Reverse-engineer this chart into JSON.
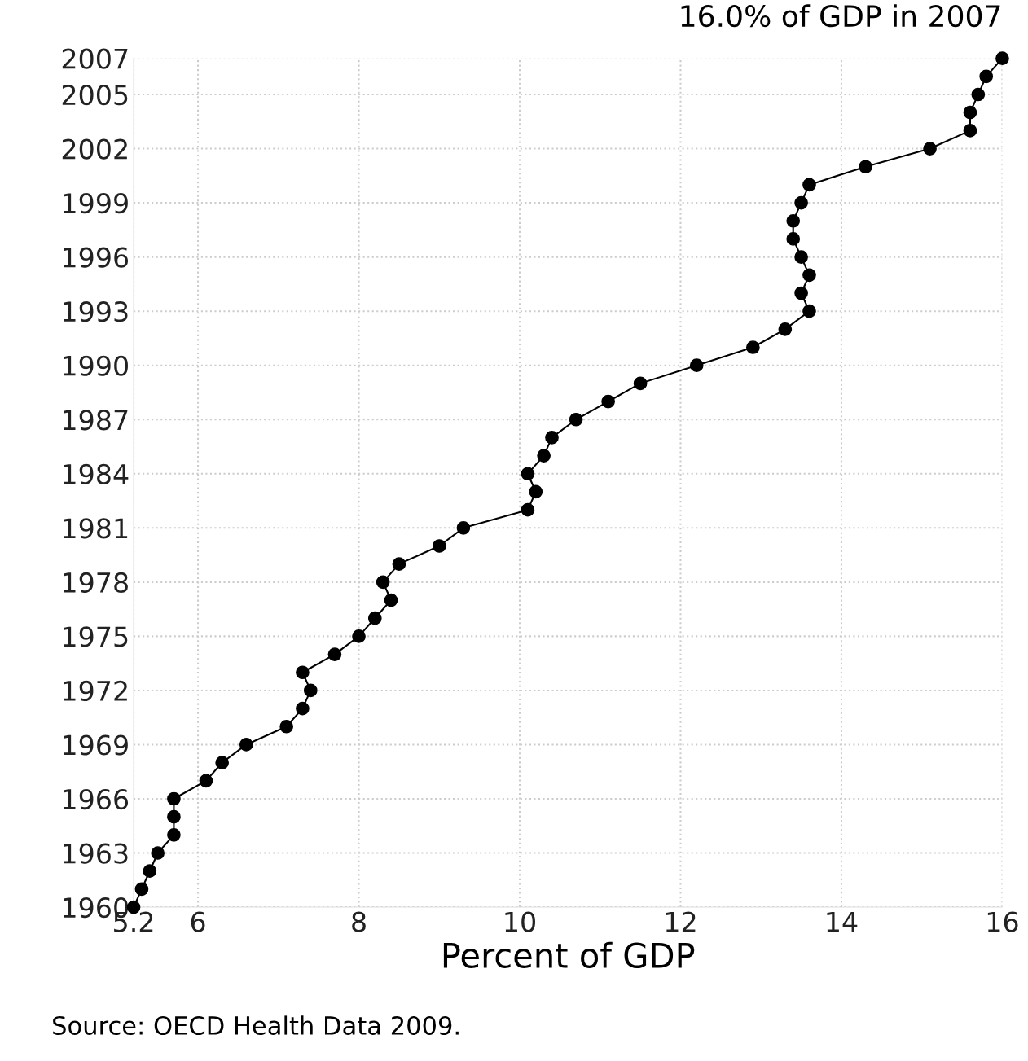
{
  "chart_data": {
    "type": "line",
    "title": "16.0% of GDP in 2007",
    "xlabel": "Percent of GDP",
    "annotations": [
      "Source: OECD Health Data 2009."
    ],
    "x": [
      5.2,
      5.3,
      5.4,
      5.5,
      5.7,
      5.7,
      5.7,
      6.1,
      6.3,
      6.6,
      7.1,
      7.3,
      7.4,
      7.3,
      7.7,
      8.0,
      8.2,
      8.4,
      8.3,
      8.5,
      9.0,
      9.3,
      10.1,
      10.2,
      10.1,
      10.3,
      10.4,
      10.7,
      11.1,
      11.5,
      12.2,
      12.9,
      13.3,
      13.6,
      13.5,
      13.6,
      13.5,
      13.4,
      13.4,
      13.5,
      13.6,
      14.3,
      15.1,
      15.6,
      15.6,
      15.7,
      15.8,
      16.0
    ],
    "series": [
      {
        "color": "#000000",
        "values": [
          1960,
          1961,
          1962,
          1963,
          1964,
          1965,
          1966,
          1967,
          1968,
          1969,
          1970,
          1971,
          1972,
          1973,
          1974,
          1975,
          1976,
          1977,
          1978,
          1979,
          1980,
          1981,
          1982,
          1983,
          1984,
          1985,
          1986,
          1987,
          1988,
          1989,
          1990,
          1991,
          1992,
          1993,
          1994,
          1995,
          1996,
          1997,
          1998,
          1999,
          2000,
          2001,
          2002,
          2003,
          2004,
          2005,
          2006,
          2007
        ]
      }
    ],
    "xlim": [
      5.2,
      16
    ],
    "xticks": [
      5.2,
      6,
      8,
      10,
      12,
      14,
      16
    ],
    "ylim": [
      1960,
      2007
    ],
    "yticks": [
      1960,
      1963,
      1966,
      1969,
      1972,
      1975,
      1978,
      1981,
      1984,
      1987,
      1990,
      1993,
      1996,
      1999,
      2002,
      2005,
      2007
    ],
    "grid": true,
    "marker": "circle",
    "line_style": "solid",
    "legend": false
  }
}
